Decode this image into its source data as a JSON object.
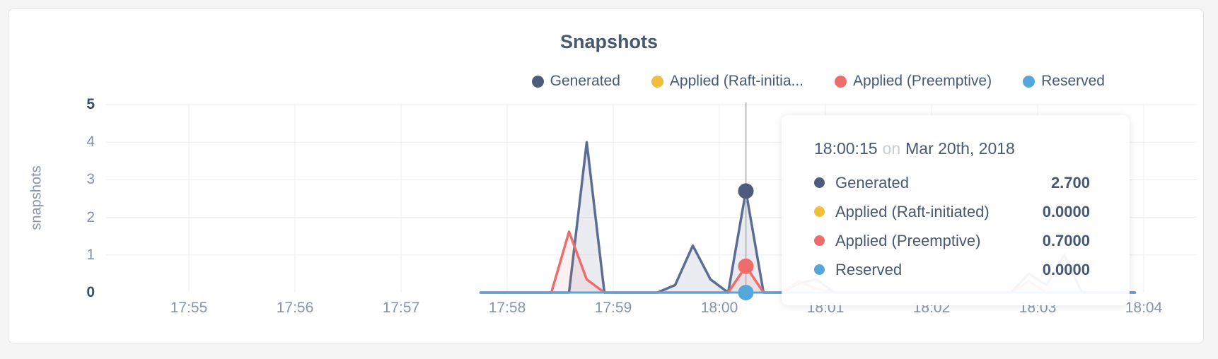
{
  "chart_data": {
    "type": "area",
    "title": "Snapshots",
    "ylabel": "snapshots",
    "ylim": [
      0,
      5
    ],
    "grid": true,
    "grid_color": "#ededed",
    "y_ticks": [
      5,
      4,
      3,
      2,
      1,
      0
    ],
    "x_ticks": [
      "17:55",
      "17:56",
      "17:57",
      "17:58",
      "17:59",
      "18:00",
      "18:01",
      "18:02",
      "18:03",
      "18:04"
    ],
    "x_start_seconds": 165,
    "x_step_seconds": 10,
    "x_start_time": "17:57:45",
    "x_end_time": "18:03:55",
    "series": [
      {
        "name": "Generated",
        "color": "#5b6d92",
        "fill": "rgba(91,109,146,0.13)",
        "values": [
          0,
          0,
          0,
          0,
          0,
          0,
          4,
          0,
          0,
          0,
          0,
          0.2,
          1.25,
          0.35,
          0,
          2.7,
          0,
          0,
          0.25,
          0.35,
          0,
          0,
          0,
          0,
          0,
          0,
          0,
          0,
          0,
          0,
          0,
          0.5,
          0.2,
          1,
          0,
          0,
          0,
          0
        ]
      },
      {
        "name": "Applied (Raft-initiated)",
        "color": "#f0be3c",
        "fill": "none",
        "values": [
          0,
          0,
          0,
          0,
          0,
          0,
          0,
          0,
          0,
          0,
          0,
          0,
          0,
          0,
          0,
          0,
          0,
          0,
          0,
          0,
          0,
          0,
          0,
          0,
          0,
          0,
          0,
          0,
          0,
          0,
          0,
          0,
          0,
          0,
          0,
          0,
          0,
          0
        ]
      },
      {
        "name": "Applied (Preemptive)",
        "color": "#ed6d6d",
        "fill": "rgba(237,109,109,0.10)",
        "values": [
          0,
          0,
          0,
          0,
          0,
          1.62,
          0.35,
          0,
          0,
          0,
          0,
          0,
          0,
          0,
          0,
          0.7,
          0,
          0,
          0.3,
          0.1,
          0,
          0,
          0,
          0,
          0,
          0,
          0,
          0,
          0,
          0,
          0,
          0.3,
          0,
          0,
          0,
          0,
          0,
          0
        ]
      },
      {
        "name": "Reserved",
        "color": "#55a6db",
        "fill": "none",
        "values": [
          0,
          0,
          0,
          0,
          0,
          0,
          0,
          0,
          0,
          0,
          0,
          0,
          0,
          0,
          0,
          0,
          0,
          0,
          0,
          0,
          0,
          0,
          0,
          0,
          0,
          0,
          0,
          0,
          0,
          0,
          0,
          0,
          0,
          0,
          0,
          0,
          0,
          0
        ]
      }
    ],
    "hover": {
      "time": "18:00:15",
      "time_seconds": 315,
      "line_color": "#bcbcbc",
      "dots": [
        {
          "series": "Generated",
          "value": 2.7,
          "color": "#4d5b7c"
        },
        {
          "series": "Applied (Preemptive)",
          "value": 0.7,
          "color": "#ed6d6d"
        },
        {
          "series": "Reserved",
          "value": 0,
          "color": "#55a6db"
        }
      ]
    }
  },
  "legend": {
    "items": [
      {
        "label": "Generated",
        "color": "#4d5b7c"
      },
      {
        "label": "Applied (Raft-initia...",
        "color": "#f0be3c"
      },
      {
        "label": "Applied (Preemptive)",
        "color": "#ed6d6d"
      },
      {
        "label": "Reserved",
        "color": "#55a6db"
      }
    ]
  },
  "tooltip": {
    "time": "18:00:15",
    "on_word": "on",
    "date": "Mar 20th, 2018",
    "rows": [
      {
        "label": "Generated",
        "value": "2.700",
        "color": "#4d5b7c"
      },
      {
        "label": "Applied (Raft-initiated)",
        "value": "0.0000",
        "color": "#f0be3c"
      },
      {
        "label": "Applied (Preemptive)",
        "value": "0.7000",
        "color": "#ed6d6d"
      },
      {
        "label": "Reserved",
        "value": "0.0000",
        "color": "#55a6db"
      }
    ]
  }
}
